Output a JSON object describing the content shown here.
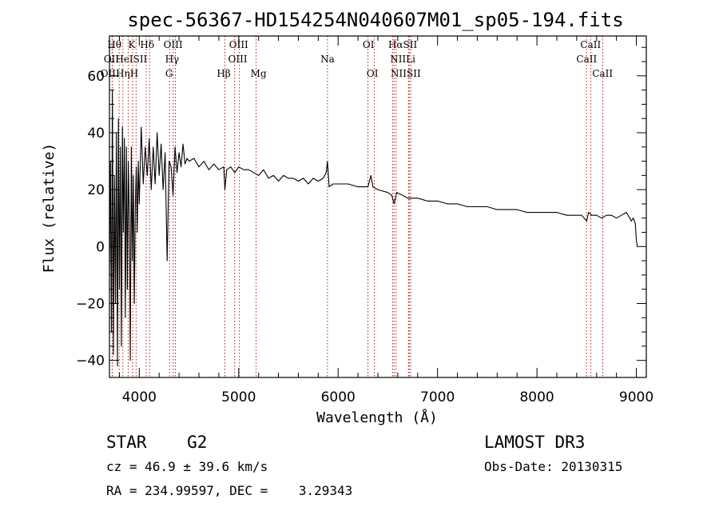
{
  "chart_data": {
    "type": "line",
    "title": "spec-56367-HD154254N040607M01_sp05-194.fits",
    "xlabel": "Wavelength (Å)",
    "ylabel": "Flux (relative)",
    "xlim": [
      3700,
      9100
    ],
    "ylim": [
      -46,
      74
    ],
    "x_ticks": [
      4000,
      5000,
      6000,
      7000,
      8000,
      9000
    ],
    "y_ticks": [
      -40,
      -20,
      0,
      20,
      40,
      60
    ],
    "colors": {
      "spectrum": "#000000",
      "lines": "#b22222",
      "axes": "#000000"
    },
    "series": [
      {
        "name": "flux",
        "x": [
          3700,
          3710,
          3720,
          3730,
          3740,
          3750,
          3760,
          3770,
          3780,
          3790,
          3800,
          3810,
          3820,
          3830,
          3840,
          3850,
          3860,
          3870,
          3880,
          3890,
          3900,
          3910,
          3920,
          3930,
          3940,
          3950,
          3960,
          3970,
          3980,
          3990,
          4000,
          4020,
          4040,
          4060,
          4080,
          4100,
          4120,
          4140,
          4160,
          4180,
          4200,
          4220,
          4240,
          4260,
          4280,
          4300,
          4320,
          4340,
          4360,
          4380,
          4400,
          4420,
          4440,
          4460,
          4480,
          4500,
          4550,
          4600,
          4650,
          4700,
          4750,
          4800,
          4850,
          4861,
          4880,
          4920,
          4960,
          5000,
          5050,
          5100,
          5150,
          5200,
          5250,
          5300,
          5350,
          5400,
          5450,
          5500,
          5550,
          5600,
          5650,
          5700,
          5750,
          5800,
          5850,
          5880,
          5893,
          5910,
          5950,
          6000,
          6100,
          6200,
          6300,
          6330,
          6350,
          6400,
          6500,
          6540,
          6563,
          6590,
          6650,
          6700,
          6800,
          6900,
          7000,
          7100,
          7200,
          7300,
          7400,
          7500,
          7600,
          7700,
          7800,
          7900,
          8000,
          8100,
          8200,
          8300,
          8400,
          8450,
          8500,
          8520,
          8550,
          8600,
          8650,
          8700,
          8750,
          8800,
          8850,
          8900,
          8950,
          8970,
          8990,
          9000,
          9010
        ],
        "y": [
          -10,
          30,
          -30,
          55,
          -38,
          25,
          -20,
          40,
          -42,
          45,
          -15,
          35,
          -35,
          42,
          5,
          38,
          -25,
          35,
          -15,
          30,
          10,
          -40,
          35,
          -5,
          25,
          -20,
          15,
          28,
          5,
          30,
          15,
          42,
          22,
          35,
          25,
          38,
          20,
          35,
          22,
          40,
          25,
          36,
          20,
          33,
          -5,
          30,
          28,
          18,
          35,
          26,
          33,
          28,
          36,
          29,
          31,
          30,
          31,
          28,
          30,
          27,
          29,
          27,
          28,
          20,
          27,
          28,
          26,
          28,
          27,
          27,
          26,
          25,
          27,
          24,
          25,
          23,
          25,
          24,
          24,
          23,
          24,
          22,
          24,
          23,
          24,
          26,
          30,
          21,
          22,
          22,
          22,
          21,
          21,
          25,
          21,
          20,
          19,
          18,
          15,
          19,
          18,
          17,
          17,
          16,
          16,
          15,
          15,
          14,
          14,
          14,
          13,
          13,
          13,
          12,
          12,
          12,
          12,
          11,
          11,
          11,
          9,
          12,
          11,
          11,
          10,
          11,
          11,
          10,
          11,
          12,
          9,
          10,
          8,
          2,
          0
        ]
      }
    ],
    "line_markers": [
      {
        "name": "Hθ",
        "wavelength": 3798
      },
      {
        "name": "OII",
        "wavelength": 3727
      },
      {
        "name": "OII",
        "wavelength": 3730
      },
      {
        "name": "Hη",
        "wavelength": 3835
      },
      {
        "name": "HeI",
        "wavelength": 3889
      },
      {
        "name": "K",
        "wavelength": 3934
      },
      {
        "name": "H",
        "wavelength": 3968
      },
      {
        "name": "SII",
        "wavelength": 4069
      },
      {
        "name": "Hδ",
        "wavelength": 4102
      },
      {
        "name": "G",
        "wavelength": 4305
      },
      {
        "name": "Hγ",
        "wavelength": 4341
      },
      {
        "name": "OIII",
        "wavelength": 4363
      },
      {
        "name": "Hβ",
        "wavelength": 4861
      },
      {
        "name": "OIII",
        "wavelength": 4959
      },
      {
        "name": "OIII",
        "wavelength": 5007
      },
      {
        "name": "Mg",
        "wavelength": 5175
      },
      {
        "name": "Na",
        "wavelength": 5893
      },
      {
        "name": "OI",
        "wavelength": 6300
      },
      {
        "name": "OI",
        "wavelength": 6364
      },
      {
        "name": "NII",
        "wavelength": 6548
      },
      {
        "name": "Hα",
        "wavelength": 6563
      },
      {
        "name": "NII",
        "wavelength": 6583
      },
      {
        "name": "Li",
        "wavelength": 6708
      },
      {
        "name": "SII",
        "wavelength": 6716
      },
      {
        "name": "SII",
        "wavelength": 6731
      },
      {
        "name": "CaII",
        "wavelength": 8498
      },
      {
        "name": "CaII",
        "wavelength": 8542
      },
      {
        "name": "CaII",
        "wavelength": 8662
      }
    ],
    "line_labels": [
      {
        "text": "Hθ",
        "wavelength": 3750,
        "row": 1
      },
      {
        "text": "K",
        "wavelength": 3925,
        "row": 1
      },
      {
        "text": "Hδ",
        "wavelength": 4080,
        "row": 1
      },
      {
        "text": "OIII",
        "wavelength": 4340,
        "row": 1
      },
      {
        "text": "OIII",
        "wavelength": 5000,
        "row": 1
      },
      {
        "text": "OI",
        "wavelength": 6305,
        "row": 1
      },
      {
        "text": "HαSII",
        "wavelength": 6650,
        "row": 1
      },
      {
        "text": "CaII",
        "wavelength": 8540,
        "row": 1
      },
      {
        "text": "OII",
        "wavelength": 3720,
        "row": 2
      },
      {
        "text": "HeISII",
        "wavelength": 3920,
        "row": 2
      },
      {
        "text": "Hγ",
        "wavelength": 4330,
        "row": 2
      },
      {
        "text": "OIII",
        "wavelength": 4990,
        "row": 2
      },
      {
        "text": "Na",
        "wavelength": 5893,
        "row": 2
      },
      {
        "text": "NIILi",
        "wavelength": 6650,
        "row": 2
      },
      {
        "text": "CaII",
        "wavelength": 8500,
        "row": 2
      },
      {
        "text": "OIIHηH",
        "wavelength": 3800,
        "row": 3
      },
      {
        "text": "G",
        "wavelength": 4300,
        "row": 3
      },
      {
        "text": "Hβ",
        "wavelength": 4850,
        "row": 3
      },
      {
        "text": "Mg",
        "wavelength": 5200,
        "row": 3
      },
      {
        "text": "OI",
        "wavelength": 6345,
        "row": 3
      },
      {
        "text": "NIISII",
        "wavelength": 6680,
        "row": 3
      },
      {
        "text": "CaII",
        "wavelength": 8660,
        "row": 3
      }
    ]
  },
  "info": {
    "class_line": "STAR    G2",
    "survey": "LAMOST DR3",
    "cz_line": "cz = 46.9 ± 39.6 km/s",
    "obs_date": "Obs-Date: 20130315",
    "radec_line": "RA = 234.99597, DEC =    3.29343"
  }
}
